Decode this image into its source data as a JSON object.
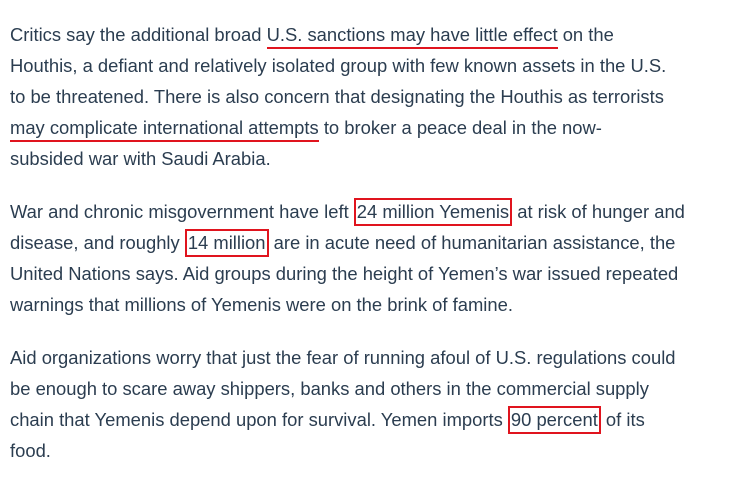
{
  "article": {
    "paragraphs": [
      {
        "lines": [
          [
            {
              "text": "Critics say the additional broad "
            },
            {
              "text": "U.S. sanctions may have little effect",
              "mark": "underline"
            },
            {
              "text": " on the"
            }
          ],
          [
            {
              "text": "Houthis, a defiant and relatively isolated group with few known assets in the U.S."
            }
          ],
          [
            {
              "text": "to be threatened. There is also concern that designating the Houthis as terrorists"
            }
          ],
          [
            {
              "text": "may complicate international attempts",
              "mark": "underline"
            },
            {
              "text": " to broker a peace deal in the now-"
            }
          ],
          [
            {
              "text": "subsided war with Saudi Arabia."
            }
          ]
        ]
      },
      {
        "lines": [
          [
            {
              "text": "War and chronic misgovernment have left "
            },
            {
              "text": "24 million Yemenis",
              "mark": "box"
            },
            {
              "text": " at risk of hunger and"
            }
          ],
          [
            {
              "text": "disease, and roughly "
            },
            {
              "text": "14 million",
              "mark": "box"
            },
            {
              "text": " are in acute need of humanitarian assistance, the"
            }
          ],
          [
            {
              "text": "United Nations says. Aid groups during the height of Yemen’s war issued repeated"
            }
          ],
          [
            {
              "text": "warnings that millions of Yemenis were on the brink of famine."
            }
          ]
        ]
      },
      {
        "lines": [
          [
            {
              "text": "Aid organizations worry that just the fear of running afoul of U.S. regulations could"
            }
          ],
          [
            {
              "text": "be enough to scare away shippers, banks and others in the commercial supply"
            }
          ],
          [
            {
              "text": "chain that Yemenis depend upon for survival. Yemen imports "
            },
            {
              "text": "90 percent",
              "mark": "box"
            },
            {
              "text": " of its"
            }
          ],
          [
            {
              "text": "food."
            }
          ]
        ]
      }
    ]
  }
}
